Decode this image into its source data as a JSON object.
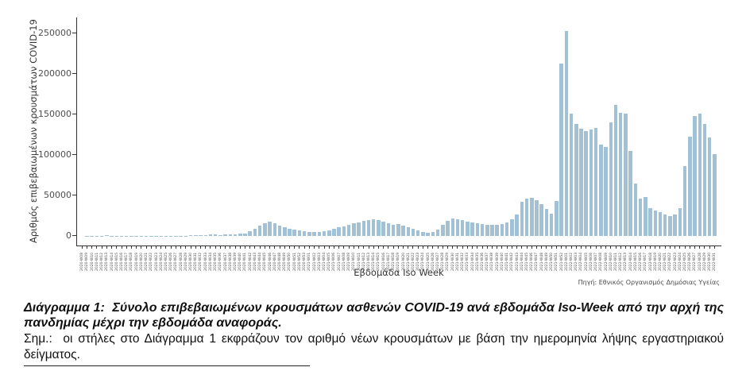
{
  "figure": {
    "source": "Πηγή: Εθνικός Οργανισμός Δημόσιας Υγείας"
  },
  "caption": {
    "label": "Διάγραμμα 1:",
    "text": "Σύνολο επιβεβαιωμένων κρουσμάτων ασθενών COVID-19 ανά εβδομάδα Iso-Week από την αρχή της πανδημίας μέχρι την εβδομάδα αναφοράς."
  },
  "note": {
    "label": "Σημ.:",
    "text": "οι στήλες στο Διάγραμμα 1 εκφράζουν τον αριθμό νέων κρουσμάτων με βάση την ημερομηνία λήψης εργαστηριακού δείγματος."
  },
  "chart_data": {
    "type": "bar",
    "title": "",
    "xlabel": "Εβδομάδα Iso Week",
    "ylabel": "Αριθμός επιβεβαιωμένων κρουσμάτων COVID-19",
    "ylim": [
      0,
      260000
    ],
    "yticks": [
      0,
      50000,
      100000,
      150000,
      200000,
      250000
    ],
    "grid": false,
    "legend": "none",
    "bar_color": "#a3c1d5",
    "axis_color": "#333333",
    "tick_label_color": "#4d4d4d",
    "categories": [
      "2020-W08",
      "2020-W09",
      "2020-W10",
      "2020-W11",
      "2020-W12",
      "2020-W13",
      "2020-W14",
      "2020-W15",
      "2020-W16",
      "2020-W17",
      "2020-W18",
      "2020-W19",
      "2020-W20",
      "2020-W21",
      "2020-W22",
      "2020-W23",
      "2020-W24",
      "2020-W25",
      "2020-W26",
      "2020-W27",
      "2020-W28",
      "2020-W29",
      "2020-W30",
      "2020-W31",
      "2020-W32",
      "2020-W33",
      "2020-W34",
      "2020-W35",
      "2020-W36",
      "2020-W37",
      "2020-W38",
      "2020-W39",
      "2020-W40",
      "2020-W41",
      "2020-W42",
      "2020-W43",
      "2020-W44",
      "2020-W45",
      "2020-W46",
      "2020-W47",
      "2020-W48",
      "2020-W49",
      "2020-W50",
      "2020-W51",
      "2020-W52",
      "2020-W53",
      "2021-W01",
      "2021-W02",
      "2021-W03",
      "2021-W04",
      "2021-W05",
      "2021-W06",
      "2021-W07",
      "2021-W08",
      "2021-W09",
      "2021-W10",
      "2021-W11",
      "2021-W12",
      "2021-W13",
      "2021-W14",
      "2021-W15",
      "2021-W16",
      "2021-W17",
      "2021-W18",
      "2021-W19",
      "2021-W20",
      "2021-W21",
      "2021-W22",
      "2021-W23",
      "2021-W24",
      "2021-W25",
      "2021-W26",
      "2021-W27",
      "2021-W28",
      "2021-W29",
      "2021-W30",
      "2021-W31",
      "2021-W32",
      "2021-W33",
      "2021-W34",
      "2021-W35",
      "2021-W36",
      "2021-W37",
      "2021-W38",
      "2021-W39",
      "2021-W40",
      "2021-W41",
      "2021-W42",
      "2021-W43",
      "2021-W44",
      "2021-W45",
      "2021-W46",
      "2021-W47",
      "2021-W48",
      "2021-W49",
      "2021-W50",
      "2021-W51",
      "2021-W52",
      "2022-W01",
      "2022-W02",
      "2022-W03",
      "2022-W04",
      "2022-W05",
      "2022-W06",
      "2022-W07",
      "2022-W08",
      "2022-W09",
      "2022-W10",
      "2022-W11",
      "2022-W12",
      "2022-W13",
      "2022-W14",
      "2022-W15",
      "2022-W16",
      "2022-W17",
      "2022-W18",
      "2022-W19",
      "2022-W20",
      "2022-W21",
      "2022-W22",
      "2022-W23",
      "2022-W24",
      "2022-W25",
      "2022-W26",
      "2022-W27",
      "2022-W28",
      "2022-W29",
      "2022-W30",
      "2022-W31"
    ],
    "values": [
      0,
      10,
      80,
      330,
      480,
      530,
      420,
      330,
      260,
      150,
      110,
      100,
      120,
      110,
      90,
      70,
      120,
      160,
      190,
      220,
      290,
      430,
      700,
      1100,
      1350,
      1450,
      1550,
      1500,
      1450,
      1550,
      1700,
      2000,
      2600,
      3400,
      5400,
      9000,
      13000,
      16000,
      17500,
      16000,
      13000,
      10500,
      9000,
      8000,
      7000,
      5800,
      5200,
      4600,
      4800,
      5600,
      7300,
      8600,
      10400,
      12200,
      14100,
      15600,
      17000,
      18500,
      20000,
      20500,
      19500,
      18000,
      15500,
      14000,
      14500,
      13000,
      11000,
      8800,
      6400,
      4800,
      4100,
      4500,
      8000,
      14000,
      19000,
      21500,
      21000,
      19500,
      18000,
      17000,
      15500,
      14500,
      14000,
      13500,
      14000,
      14500,
      16500,
      20500,
      26000,
      42000,
      46000,
      47000,
      44000,
      39000,
      33000,
      27500,
      43000,
      213000,
      253000,
      151000,
      138000,
      132000,
      129000,
      131000,
      133000,
      113000,
      110000,
      140000,
      162000,
      152000,
      151000,
      105000,
      65000,
      46000,
      48000,
      34000,
      31000,
      29000,
      26000,
      25000,
      26000,
      34000,
      86000,
      123000,
      148000,
      151000,
      138000,
      122000,
      101000
    ]
  }
}
